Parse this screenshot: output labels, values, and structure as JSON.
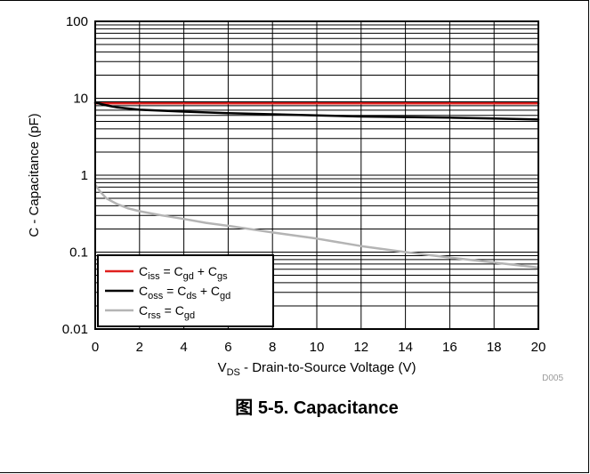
{
  "chart_data": {
    "type": "line",
    "x_axis": {
      "label_base": "V",
      "label_sub": "DS",
      "label_rest": " - Drain-to-Source Voltage (V)",
      "min": 0,
      "max": 20,
      "ticks": [
        "0",
        "2",
        "4",
        "6",
        "8",
        "10",
        "12",
        "14",
        "16",
        "18",
        "20"
      ]
    },
    "y_axis": {
      "label": "C - Capacitance (pF)",
      "scale": "log",
      "min": 0.01,
      "max": 100,
      "ticks": [
        "0.01",
        "0.1",
        "1",
        "10",
        "100"
      ]
    },
    "grid": true,
    "legend_position": "bottom-left",
    "series": [
      {
        "name": "Ciss = Cgd + Cgs",
        "legend": [
          [
            "C",
            ""
          ],
          [
            "iss",
            "sub"
          ],
          [
            " = C",
            ""
          ],
          [
            "gd",
            "sub"
          ],
          [
            " + C",
            ""
          ],
          [
            "gs",
            "sub"
          ]
        ],
        "color": "#e0201e",
        "x": [
          0,
          1,
          2,
          4,
          6,
          8,
          10,
          12,
          14,
          16,
          18,
          20
        ],
        "y": [
          8.6,
          8.6,
          8.6,
          8.6,
          8.6,
          8.6,
          8.6,
          8.6,
          8.6,
          8.6,
          8.6,
          8.6
        ]
      },
      {
        "name": "Coss = Cds + Cgd",
        "legend": [
          [
            "C",
            ""
          ],
          [
            "oss",
            "sub"
          ],
          [
            " = C",
            ""
          ],
          [
            "ds",
            "sub"
          ],
          [
            " + C",
            ""
          ],
          [
            "gd",
            "sub"
          ]
        ],
        "color": "#000000",
        "x": [
          0,
          0.5,
          1,
          2,
          4,
          6,
          8,
          10,
          12,
          14,
          16,
          18,
          20
        ],
        "y": [
          8.8,
          8.1,
          7.6,
          7.1,
          6.7,
          6.4,
          6.2,
          6.0,
          5.8,
          5.7,
          5.6,
          5.45,
          5.3
        ]
      },
      {
        "name": "Crss = Cgd",
        "legend": [
          [
            "C",
            ""
          ],
          [
            "rss",
            "sub"
          ],
          [
            " = C",
            ""
          ],
          [
            "gd",
            "sub"
          ]
        ],
        "color": "#b4b4b4",
        "x": [
          0,
          0.25,
          0.5,
          1,
          1.5,
          2,
          3,
          4,
          5,
          6,
          8,
          10,
          12,
          14,
          16,
          18,
          20
        ],
        "y": [
          0.75,
          0.6,
          0.5,
          0.42,
          0.37,
          0.34,
          0.3,
          0.27,
          0.24,
          0.22,
          0.18,
          0.15,
          0.12,
          0.1,
          0.085,
          0.073,
          0.063
        ]
      }
    ]
  },
  "figure_code": "D005",
  "caption": "图 5-5. Capacitance"
}
